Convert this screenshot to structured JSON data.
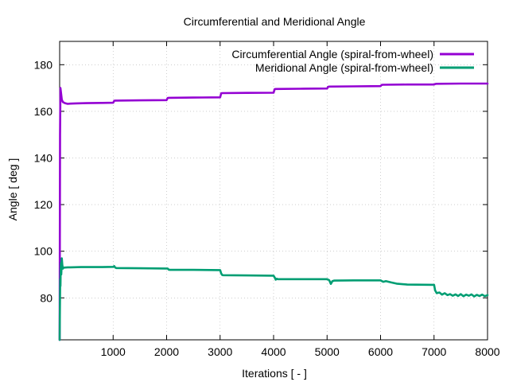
{
  "chart_data": {
    "type": "line",
    "title": "Circumferential and Meridional Angle",
    "xlabel": "Iterations [ - ]",
    "ylabel": "Angle [ deg ]",
    "xlim": [
      0,
      8000
    ],
    "ylim": [
      62,
      190
    ],
    "xticks": [
      1000,
      2000,
      3000,
      4000,
      5000,
      6000,
      7000,
      8000
    ],
    "yticks": [
      80,
      100,
      120,
      140,
      160,
      180
    ],
    "grid": true,
    "legend_position": "top-right",
    "series": [
      {
        "name": "Circumferential Angle (spiral-from-wheel)",
        "color": "#9400d3",
        "x": [
          0,
          8,
          15,
          25,
          40,
          60,
          100,
          150,
          200,
          300,
          500,
          800,
          1000,
          1020,
          1040,
          1500,
          2000,
          2020,
          2040,
          2500,
          3000,
          3020,
          3040,
          3500,
          4000,
          4020,
          4040,
          4500,
          5000,
          5020,
          5040,
          5500,
          6000,
          6020,
          6040,
          6500,
          7000,
          7020,
          7040,
          7500,
          8000
        ],
        "y": [
          62,
          150,
          170,
          168,
          165,
          164,
          163.5,
          163.2,
          163.3,
          163.4,
          163.5,
          163.6,
          163.7,
          164.5,
          164.6,
          164.7,
          164.8,
          165.7,
          165.8,
          165.9,
          166.0,
          167.7,
          167.8,
          167.9,
          168.0,
          169.5,
          169.6,
          169.7,
          169.8,
          170.5,
          170.6,
          170.7,
          170.8,
          171.3,
          171.4,
          171.5,
          171.5,
          171.7,
          171.8,
          171.9,
          171.9
        ]
      },
      {
        "name": "Meridional Angle (spiral-from-wheel)",
        "color": "#009e73",
        "x": [
          0,
          5,
          10,
          15,
          20,
          25,
          30,
          35,
          40,
          50,
          60,
          70,
          80,
          100,
          150,
          200,
          400,
          600,
          800,
          1000,
          1020,
          1040,
          1060,
          1500,
          2000,
          2020,
          2040,
          2060,
          2500,
          3000,
          3020,
          3040,
          3060,
          3500,
          4000,
          4020,
          4040,
          4060,
          4080,
          4500,
          5000,
          5040,
          5070,
          5100,
          5130,
          5500,
          6000,
          6050,
          6100,
          6200,
          6300,
          6500,
          7000,
          7020,
          7050,
          7100,
          7150,
          7200,
          7250,
          7300,
          7350,
          7400,
          7450,
          7500,
          7550,
          7600,
          7650,
          7700,
          7750,
          7800,
          7850,
          7900,
          7950,
          8000
        ],
        "y": [
          62,
          75,
          88,
          85,
          92,
          95,
          90,
          93,
          97,
          94,
          92.5,
          92.8,
          93.0,
          93.0,
          93.1,
          93.1,
          93.2,
          93.2,
          93.2,
          93.3,
          93.6,
          93.0,
          92.8,
          92.7,
          92.6,
          92.6,
          92.1,
          92.0,
          92.0,
          91.9,
          90.5,
          89.8,
          89.7,
          89.6,
          89.5,
          88.8,
          87.8,
          88.2,
          88.0,
          88.0,
          88.0,
          87.6,
          86.0,
          87.2,
          87.4,
          87.5,
          87.5,
          86.9,
          87.2,
          86.6,
          86.1,
          85.7,
          85.6,
          83.2,
          82.0,
          82.3,
          81.4,
          82.0,
          81.2,
          81.6,
          80.9,
          81.5,
          80.8,
          81.6,
          80.7,
          81.4,
          80.9,
          81.5,
          80.6,
          81.3,
          80.8,
          81.4,
          80.7,
          81.2
        ]
      }
    ]
  }
}
